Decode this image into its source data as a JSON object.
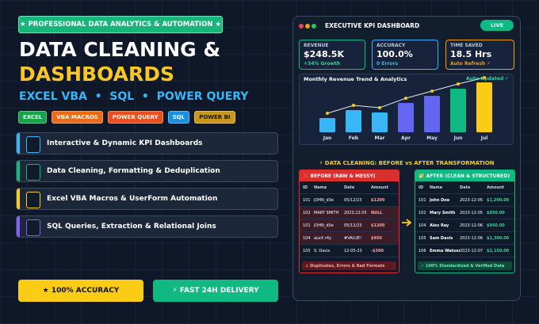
{
  "badge": "★ PROFESSIONAL DATA ANALYTICS & AUTOMATION ★",
  "title_line1": "DATA CLEANING &",
  "title_line2": "DASHBOARDS",
  "subtitle": "EXCEL VBA  •  SQL  •  POWER QUERY",
  "tags": [
    "EXCEL",
    "VBA MACROS",
    "POWER QUERY",
    "SQL",
    "POWER BI"
  ],
  "features": [
    "Interactive & Dynamic KPI Dashboards",
    "Data Cleaning, Formatting & Deduplication",
    "Excel VBA Macros & UserForm Automation",
    "SQL Queries, Extraction & Relational Joins"
  ],
  "buttons": [
    "★ 100% ACCURACY",
    "⚡ FAST 24H DELIVERY"
  ],
  "dashboard": {
    "title": "EXECUTIVE KPI DASHBOARD",
    "live": "LIVE",
    "kpis": [
      {
        "label": "REVENUE",
        "value": "$248.5K",
        "note": "+34% Growth"
      },
      {
        "label": "ACCURACY",
        "value": "100.0%",
        "note": "0 Errors"
      },
      {
        "label": "TIME SAVED",
        "value": "18.5 Hrs",
        "note": "Auto Refresh ⚡"
      }
    ]
  },
  "chart_data": {
    "type": "bar",
    "title": "Monthly Revenue Trend & Analytics",
    "annotation": "Auto-Updated ⚡",
    "categories": [
      "Jan",
      "Feb",
      "Mar",
      "Apr",
      "May",
      "Jun",
      "Jul"
    ],
    "values": [
      18,
      28,
      25,
      37,
      46,
      55,
      63
    ],
    "colors": [
      "#38b6f5",
      "#38b6f5",
      "#38b6f5",
      "#6366f1",
      "#6366f1",
      "#10b981",
      "#facc15"
    ]
  },
  "section_title": "⚡ DATA CLEANING: BEFORE vs AFTER TRANSFORMATION",
  "before": {
    "title": "❌ BEFORE (RAW & MESSY)",
    "columns": [
      "ID",
      "Name",
      "Date",
      "Amount"
    ],
    "rows": [
      [
        "101",
        "JOHN_d0e",
        "05/12/23",
        "$1200"
      ],
      [
        "102",
        "MARY SMITH",
        "2023.12.05",
        "NULL"
      ],
      [
        "101",
        "JOHN_d0e",
        "05/12/23",
        "$1200"
      ],
      [
        "104",
        "aLeX r4y",
        "#VALUE!",
        "$950"
      ],
      [
        "105",
        "S. Davis",
        "12-05-23",
        "-$300"
      ]
    ],
    "footer": "⚠ Duplicates, Errors & Bad Formats"
  },
  "after": {
    "title": "✅ AFTER (CLEAN & STRUCTURED)",
    "columns": [
      "ID",
      "Name",
      "Date",
      "Amount"
    ],
    "rows": [
      [
        "101",
        "John Doe",
        "2023-12-05",
        "$1,200.00"
      ],
      [
        "102",
        "Mary Smith",
        "2023-12-05",
        "$850.00"
      ],
      [
        "104",
        "Alex Ray",
        "2023-12-06",
        "$950.00"
      ],
      [
        "105",
        "Sam Davis",
        "2023-12-06",
        "$1,300.00"
      ],
      [
        "106",
        "Emma Watson",
        "2023-12-07",
        "$2,150.00"
      ]
    ],
    "footer": "✓ 100% Standardized & Verified Data"
  }
}
